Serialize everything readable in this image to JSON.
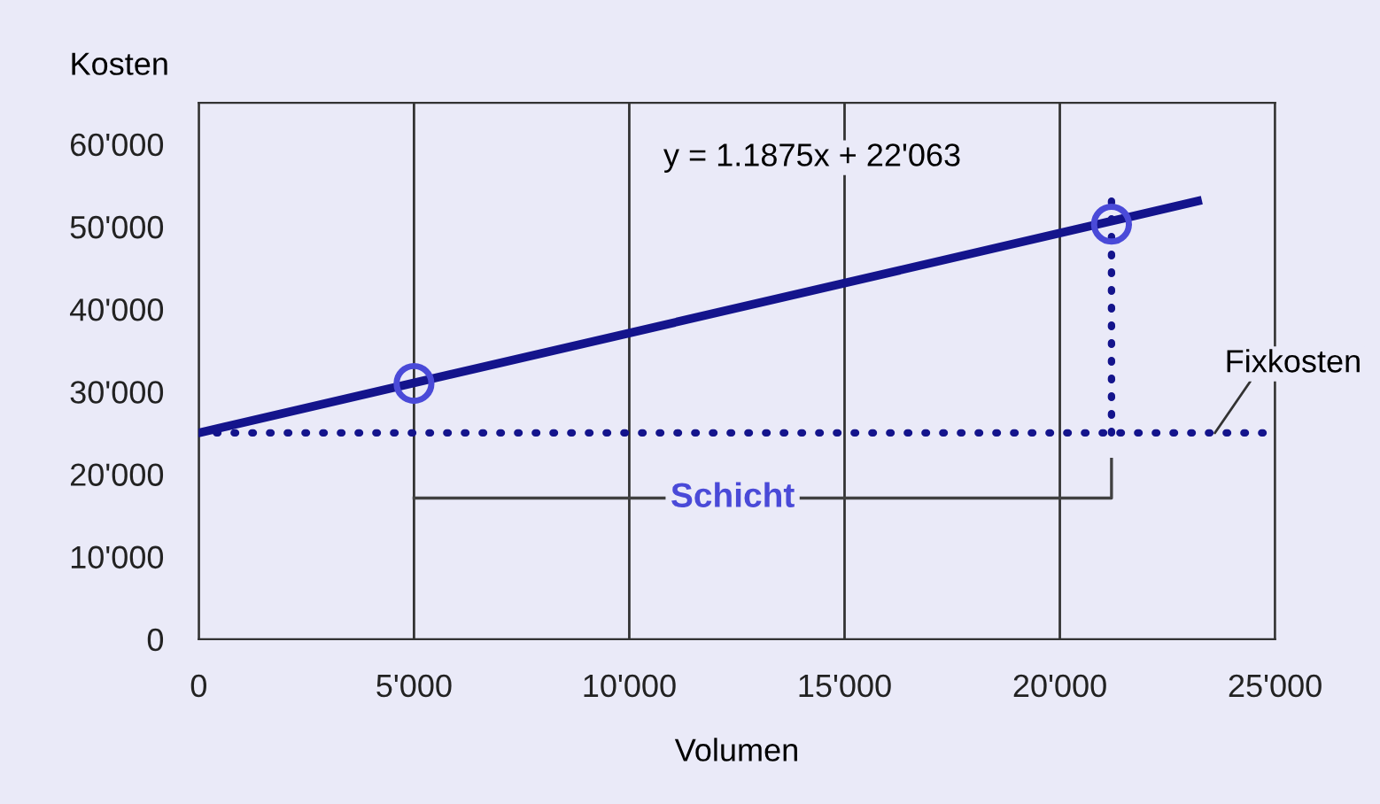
{
  "chart_data": {
    "type": "line",
    "xlabel": "Volumen",
    "ylabel": "Kosten",
    "xlim": [
      0,
      25000
    ],
    "ylim": [
      0,
      65000
    ],
    "xticks": [
      0,
      {
        "value": 5000,
        "label": "5'000"
      },
      {
        "value": 10000,
        "label": "10'000"
      },
      {
        "value": 15000,
        "label": "15'000"
      },
      {
        "value": 20000,
        "label": "20'000"
      },
      {
        "value": 25000,
        "label": "25'000"
      }
    ],
    "yticks": [
      0,
      {
        "value": 10000,
        "label": "10'000"
      },
      {
        "value": 20000,
        "label": "20'000"
      },
      {
        "value": 30000,
        "label": "30'000"
      },
      {
        "value": 40000,
        "label": "40'000"
      },
      {
        "value": 50000,
        "label": "50'000"
      },
      {
        "value": 60000,
        "label": "60'000"
      }
    ],
    "grid": "x",
    "legend": false,
    "series": [
      {
        "color": "#14148c",
        "x": [
          0,
          23200
        ],
        "values": [
          25000,
          53100
        ],
        "line_style": "solid",
        "marker": "none"
      },
      {
        "color": "#14148c",
        "x": [
          21200,
          21200
        ],
        "values": [
          25000,
          54200
        ],
        "line_style": "dotted",
        "marker": "none"
      },
      {
        "color": "#404040",
        "x": [
          5000,
          21200,
          21200
        ],
        "values": [
          17100,
          17100,
          21800
        ],
        "line_style": "solid",
        "marker": "none"
      },
      {
        "type": "scatter",
        "color": "#4a4ad8",
        "x": [
          5000,
          21200
        ],
        "values": [
          31000,
          50300
        ],
        "marker": "circle"
      }
    ],
    "ref_lines": [
      {
        "axis": "y",
        "value": 25000,
        "color": "#14148c",
        "line_style": "dotted"
      }
    ],
    "annotations": [
      "y = 1.1875x + 22'063",
      {
        "text": "Schicht",
        "x": 12400,
        "y": 17100
      },
      {
        "text": "Fixkosten",
        "x": 23600,
        "y": 25000
      }
    ]
  }
}
